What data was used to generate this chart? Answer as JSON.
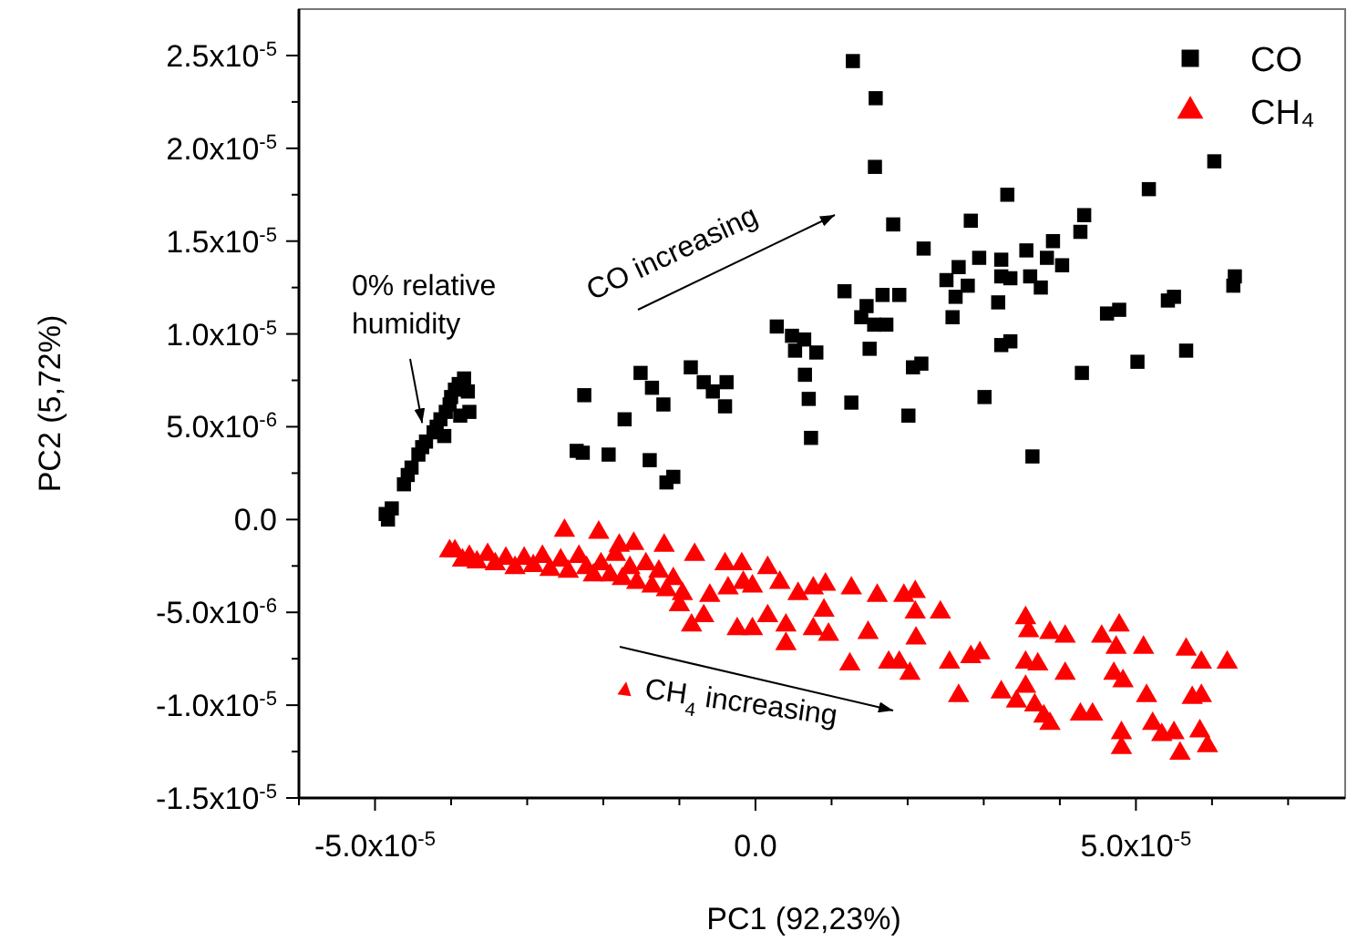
{
  "chart_data": {
    "type": "scatter",
    "xlabel": "PC1 (92,23%)",
    "ylabel": "PC2 (5,72%)",
    "xlim": [
      -6e-05,
      7.75e-05
    ],
    "ylim": [
      -1.5e-05,
      2.75e-05
    ],
    "xticks": [
      {
        "value": -6e-05,
        "label": null
      },
      {
        "value": -5e-05,
        "label": "-5.0x10$^{-5}$"
      },
      {
        "value": -4e-05,
        "label": null
      },
      {
        "value": -3e-05,
        "label": null
      },
      {
        "value": -2e-05,
        "label": null
      },
      {
        "value": -1e-05,
        "label": null
      },
      {
        "value": 0,
        "label": "0.0"
      },
      {
        "value": 1e-05,
        "label": null
      },
      {
        "value": 2e-05,
        "label": null
      },
      {
        "value": 3e-05,
        "label": null
      },
      {
        "value": 4e-05,
        "label": null
      },
      {
        "value": 5e-05,
        "label": "5.0x10$^{-5}$"
      },
      {
        "value": 6e-05,
        "label": null
      },
      {
        "value": 7e-05,
        "label": null
      }
    ],
    "yticks": [
      {
        "value": -1.5e-05,
        "label": "-1.5x10$^{-5}$"
      },
      {
        "value": -1.25e-05,
        "label": null
      },
      {
        "value": -1e-05,
        "label": "-1.0x10$^{-5}$"
      },
      {
        "value": -7.5e-06,
        "label": null
      },
      {
        "value": -5e-06,
        "label": "-5.0x10$^{-6}$"
      },
      {
        "value": -2.5e-06,
        "label": null
      },
      {
        "value": 0,
        "label": "0.0"
      },
      {
        "value": 2.5e-06,
        "label": null
      },
      {
        "value": 5e-06,
        "label": "5.0x10$^{-6}$"
      },
      {
        "value": 7.5e-06,
        "label": null
      },
      {
        "value": 1e-05,
        "label": "1.0x10$^{-5}$"
      },
      {
        "value": 1.25e-05,
        "label": null
      },
      {
        "value": 1.5e-05,
        "label": "1.5x10$^{-5}$"
      },
      {
        "value": 1.75e-05,
        "label": null
      },
      {
        "value": 2e-05,
        "label": "2.0x10$^{-5}$"
      },
      {
        "value": 2.25e-05,
        "label": null
      },
      {
        "value": 2.5e-05,
        "label": "2.5x10$^{-5}$"
      }
    ],
    "grid": false,
    "legend": "top right",
    "annotations": [
      {
        "text": "0% relative\nhumidity",
        "x": -4.38e-05,
        "y": 5.2e-06
      },
      "CO increasing",
      "▲ CH$_{4}$ increasing"
    ],
    "series": [
      {
        "name": "CO",
        "color": "#000000",
        "marker": "square",
        "x": [
          1.28e-05,
          1.58e-05,
          1.57e-05,
          3.31e-05,
          2.83e-05,
          1.81e-05,
          4.32e-05,
          4.27e-05,
          5.17e-05,
          6.03e-05,
          2.21e-05,
          3.91e-05,
          3.56e-05,
          3.23e-05,
          2.94e-05,
          2.67e-05,
          3.83e-05,
          4.03e-05,
          2.51e-05,
          2.79e-05,
          2.63e-05,
          3.23e-05,
          3.35e-05,
          3.61e-05,
          3.75e-05,
          3.19e-05,
          2.59e-05,
          6.3e-05,
          6.28e-05,
          5.5e-05,
          5.42e-05,
          4.78e-05,
          4.62e-05,
          5.66e-05,
          5.02e-05,
          4.29e-05,
          3.35e-05,
          3.23e-05,
          2.18e-05,
          2.07e-05,
          3.01e-05,
          2.01e-05,
          3.64e-05,
          1.17e-05,
          1.67e-05,
          1.89e-05,
          1.46e-05,
          1.39e-05,
          1.56e-05,
          1.72e-05,
          1.5e-05,
          1.26e-05,
          2.8e-06,
          4.8e-06,
          6.4e-06,
          5.2e-06,
          8e-06,
          6.5e-06,
          7e-06,
          7.3e-06,
          -8.5e-06,
          -6.8e-06,
          -5.6e-06,
          -3.8e-06,
          -4e-06,
          -1.08e-05,
          -2.25e-05,
          -1.21e-05,
          -2.35e-05,
          -2.27e-05,
          -1.93e-05,
          -1.39e-05,
          -1.17e-05,
          -1.51e-05,
          -1.36e-05,
          -1.72e-05,
          -4.86e-05,
          -4.83e-05,
          -4.78e-05,
          -4.62e-05,
          -4.57e-05,
          -4.52e-05,
          -4.43e-05,
          -4.38e-05,
          -4.33e-05,
          -4.23e-05,
          -4.19e-05,
          -4.14e-05,
          -4.07e-05,
          -4.02e-05,
          -4e-05,
          -3.95e-05,
          -3.9e-05,
          -3.83e-05,
          -3.78e-05,
          -3.76e-05,
          -3.88e-05,
          -4.09e-05
        ],
        "values": [
          2.47e-05,
          2.27e-05,
          1.9e-05,
          1.75e-05,
          1.61e-05,
          1.59e-05,
          1.64e-05,
          1.55e-05,
          1.78e-05,
          1.93e-05,
          1.46e-05,
          1.5e-05,
          1.45e-05,
          1.4e-05,
          1.41e-05,
          1.36e-05,
          1.41e-05,
          1.37e-05,
          1.29e-05,
          1.26e-05,
          1.2e-05,
          1.31e-05,
          1.3e-05,
          1.31e-05,
          1.25e-05,
          1.17e-05,
          1.09e-05,
          1.31e-05,
          1.26e-05,
          1.2e-05,
          1.18e-05,
          1.13e-05,
          1.11e-05,
          9.1e-06,
          8.5e-06,
          7.9e-06,
          9.6e-06,
          9.4e-06,
          8.4e-06,
          8.2e-06,
          6.6e-06,
          5.6e-06,
          3.4e-06,
          1.23e-05,
          1.21e-05,
          1.21e-05,
          1.15e-05,
          1.09e-05,
          1.05e-05,
          1.05e-05,
          9.2e-06,
          6.3e-06,
          1.04e-05,
          9.9e-06,
          9.7e-06,
          9.1e-06,
          9e-06,
          7.8e-06,
          6.5e-06,
          4.4e-06,
          8.2e-06,
          7.4e-06,
          6.9e-06,
          7.4e-06,
          6.1e-06,
          2.3e-06,
          6.7e-06,
          6.2e-06,
          3.7e-06,
          3.6e-06,
          3.5e-06,
          3.2e-06,
          2e-06,
          7.9e-06,
          7.1e-06,
          5.4e-06,
          3e-07,
          0,
          6e-07,
          1.9e-06,
          2.4e-06,
          2.8e-06,
          3.5e-06,
          3.9e-06,
          4.2e-06,
          4.7e-06,
          5e-06,
          5.4e-06,
          5.8e-06,
          6.2e-06,
          6.6e-06,
          7e-06,
          7.3e-06,
          7.6e-06,
          6.9e-06,
          5.8e-06,
          5.6e-06,
          4.5e-06
        ]
      },
      {
        "name": "CH₄",
        "color": "#ff0000",
        "marker": "triangle",
        "x": [
          -8e-06,
          -4e-06,
          -1.8e-06,
          1.6e-06,
          3.2e-06,
          5.6e-06,
          7.6e-06,
          9.2e-06,
          1.26e-05,
          1.6e-05,
          1.95e-05,
          2.1e-05,
          2.1e-05,
          2.43e-05,
          9e-06,
          4e-06,
          7.6e-06,
          9.6e-06,
          1.48e-05,
          1.24e-05,
          1.75e-05,
          1.89e-05,
          2.03e-05,
          2.11e-05,
          2.55e-05,
          2.83e-05,
          2.95e-05,
          2.67e-05,
          3.23e-05,
          3.43e-05,
          3.55e-05,
          3.67e-05,
          3.55e-05,
          3.59e-05,
          3.87e-05,
          4.07e-05,
          3.55e-05,
          3.71e-05,
          4.07e-05,
          3.79e-05,
          3.87e-05,
          4.27e-05,
          4.43e-05,
          4.55e-05,
          4.78e-05,
          4.74e-05,
          5.1e-05,
          4.71e-05,
          4.83e-05,
          5.14e-05,
          5.22e-05,
          5.34e-05,
          5.5e-05,
          5.58e-05,
          4.81e-05,
          4.81e-05,
          5.66e-05,
          5.86e-05,
          6.2e-05,
          5.74e-05,
          5.86e-05,
          5.84e-05,
          5.94e-05,
          -6e-06,
          -3.6e-06,
          -1.6e-06,
          -4e-07,
          -2.4e-06,
          -4e-07,
          1.6e-06,
          4e-06,
          -6.8e-06,
          -8.4e-06,
          -1e-05,
          -3.95e-05,
          -3.85e-05,
          -3.76e-05,
          -3.66e-05,
          -3.52e-05,
          -3.42e-05,
          -3.28e-05,
          -3.16e-05,
          -3.04e-05,
          -2.92e-05,
          -2.8e-05,
          -2.7e-05,
          -2.56e-05,
          -2.46e-05,
          -2.32e-05,
          -2.22e-05,
          -2.13e-05,
          -2.03e-05,
          -1.91e-05,
          -1.84e-05,
          -1.75e-05,
          -1.65e-05,
          -1.56e-05,
          -1.44e-05,
          -1.36e-05,
          -1.27e-05,
          -1.17e-05,
          -1.08e-05,
          -9.6e-06,
          -2.51e-05,
          -2.06e-05,
          -1.6e-05,
          -4.02e-05,
          -1.2e-05,
          -1.79e-05
        ],
        "values": [
          -1.9e-06,
          -2.4e-06,
          -2.4e-06,
          -2.6e-06,
          -3.4e-06,
          -4e-06,
          -3.7e-06,
          -3.5e-06,
          -3.7e-06,
          -4.1e-06,
          -4.1e-06,
          -3.9e-06,
          -5e-06,
          -5e-06,
          -4.9e-06,
          -6.7e-06,
          -5.9e-06,
          -6.2e-06,
          -6.1e-06,
          -7.8e-06,
          -7.7e-06,
          -7.7e-06,
          -8.3e-06,
          -6.4e-06,
          -7.7e-06,
          -7.4e-06,
          -7.2e-06,
          -9.5e-06,
          -9.3e-06,
          -9.8e-06,
          -9e-06,
          -1e-05,
          -5.3e-06,
          -6e-06,
          -6.1e-06,
          -6.3e-06,
          -7.7e-06,
          -7.8e-06,
          -8.3e-06,
          -1.06e-05,
          -1.1e-05,
          -1.05e-05,
          -1.05e-05,
          -6.3e-06,
          -5.7e-06,
          -6.9e-06,
          -6.9e-06,
          -8.3e-06,
          -8.7e-06,
          -9.5e-06,
          -1.1e-05,
          -1.16e-05,
          -1.15e-05,
          -1.26e-05,
          -1.15e-05,
          -1.23e-05,
          -7e-06,
          -7.7e-06,
          -7.7e-06,
          -9.6e-06,
          -9.5e-06,
          -1.14e-05,
          -1.22e-05,
          -4.1e-06,
          -3.7e-06,
          -3.4e-06,
          -3.6e-06,
          -5.9e-06,
          -5.9e-06,
          -5.2e-06,
          -5.7e-06,
          -5.2e-06,
          -5.7e-06,
          -4.6e-06,
          -1.7e-06,
          -2.2e-06,
          -2e-06,
          -2.3e-06,
          -1.9e-06,
          -2.4e-06,
          -2.1e-06,
          -2.6e-06,
          -2.1e-06,
          -2.5e-06,
          -2e-06,
          -2.7e-06,
          -2.2e-06,
          -2.8e-06,
          -2e-06,
          -2.6e-06,
          -3e-06,
          -2.4e-06,
          -3e-06,
          -1.9e-06,
          -3.2e-06,
          -2.6e-06,
          -3.4e-06,
          -2.4e-06,
          -3.6e-06,
          -2.8e-06,
          -3.8e-06,
          -3.2e-06,
          -4e-06,
          -6e-07,
          -7e-07,
          -1.3e-06,
          -1.7e-06,
          -1.4e-06,
          -1.4e-06
        ]
      }
    ]
  }
}
